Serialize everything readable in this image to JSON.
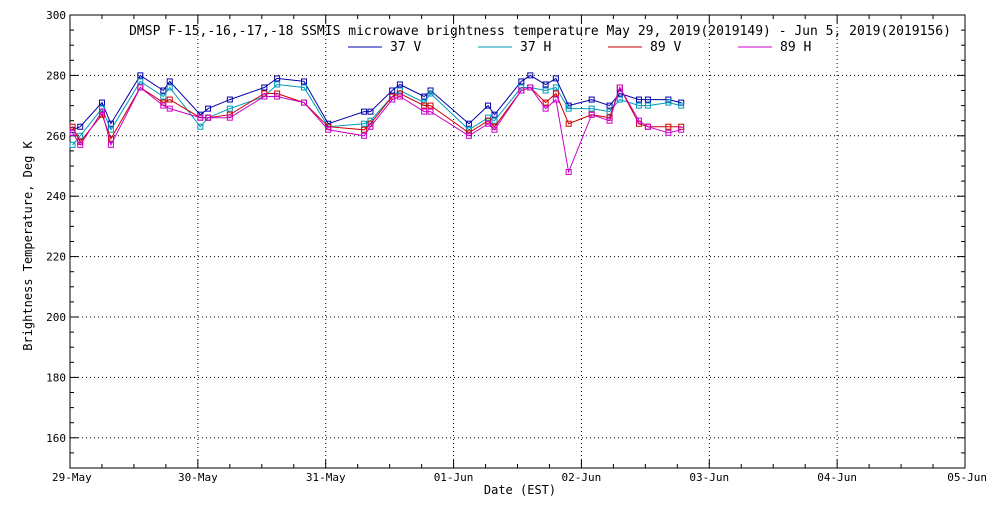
{
  "chart_data": {
    "type": "line",
    "title": "DMSP F-15,-16,-17,-18 SSMIS microwave brightness temperature May 29, 2019(2019149) - Jun  5, 2019(2019156)",
    "xlabel": "Date (EST)",
    "ylabel": "Brightness Temperature, Deg K",
    "xlim": [
      0,
      7
    ],
    "ylim": [
      150,
      300
    ],
    "x_ticks": [
      0,
      1,
      2,
      3,
      4,
      5,
      6,
      7
    ],
    "x_tick_labels": [
      "29-May",
      "30-May",
      "31-May",
      "01-Jun",
      "02-Jun",
      "03-Jun",
      "04-Jun",
      "05-Jun"
    ],
    "y_ticks": [
      160,
      180,
      200,
      220,
      240,
      260,
      280,
      300
    ],
    "y_tick_labels": [
      "160",
      "180",
      "200",
      "220",
      "240",
      "260",
      "280",
      "300"
    ],
    "grid": true,
    "legend_position": "top",
    "series": [
      {
        "name": "37 V",
        "color": "#0000aa",
        "x": [
          0.02,
          0.08,
          0.25,
          0.32,
          0.55,
          0.73,
          0.78,
          1.02,
          1.08,
          1.25,
          1.52,
          1.62,
          1.83,
          2.02,
          2.3,
          2.35,
          2.52,
          2.58,
          2.77,
          2.82,
          3.12,
          3.27,
          3.32,
          3.53,
          3.6,
          3.72,
          3.8,
          3.9,
          4.08,
          4.22,
          4.3,
          4.45,
          4.52,
          4.68,
          4.78
        ],
        "y": [
          262,
          263,
          271,
          264,
          280,
          275,
          278,
          267,
          269,
          272,
          276,
          279,
          278,
          264,
          268,
          268,
          275,
          277,
          273,
          275,
          264,
          270,
          267,
          278,
          280,
          277,
          279,
          270,
          272,
          270,
          274,
          272,
          272,
          272,
          271
        ]
      },
      {
        "name": "37 H",
        "color": "#0099bb",
        "x": [
          0.02,
          0.08,
          0.25,
          0.32,
          0.55,
          0.73,
          0.78,
          1.02,
          1.08,
          1.25,
          1.52,
          1.62,
          1.83,
          2.02,
          2.3,
          2.35,
          2.52,
          2.58,
          2.77,
          2.82,
          3.12,
          3.27,
          3.32,
          3.53,
          3.6,
          3.72,
          3.8,
          3.9,
          4.08,
          4.22,
          4.3,
          4.45,
          4.52,
          4.68,
          4.78
        ],
        "y": [
          257,
          260,
          269,
          262,
          278,
          273,
          276,
          263,
          266,
          269,
          273,
          277,
          276,
          263,
          264,
          265,
          273,
          275,
          271,
          274,
          262,
          266,
          265,
          276,
          276,
          275,
          276,
          269,
          269,
          268,
          272,
          270,
          270,
          271,
          270
        ]
      },
      {
        "name": "89 V",
        "color": "#cc0000",
        "x": [
          0.02,
          0.08,
          0.25,
          0.32,
          0.55,
          0.73,
          0.78,
          1.02,
          1.08,
          1.25,
          1.52,
          1.62,
          1.83,
          2.02,
          2.3,
          2.35,
          2.52,
          2.58,
          2.77,
          2.82,
          3.12,
          3.27,
          3.32,
          3.53,
          3.6,
          3.72,
          3.8,
          3.9,
          4.08,
          4.22,
          4.3,
          4.45,
          4.52,
          4.68,
          4.78
        ],
        "y": [
          263,
          258,
          267,
          259,
          276,
          271,
          272,
          266,
          266,
          267,
          274,
          274,
          271,
          263,
          262,
          264,
          273,
          274,
          270,
          270,
          261,
          265,
          263,
          275,
          276,
          271,
          274,
          264,
          267,
          266,
          276,
          264,
          263,
          263,
          263
        ]
      },
      {
        "name": "89 H",
        "color": "#cc00cc",
        "x": [
          0.02,
          0.08,
          0.25,
          0.32,
          0.55,
          0.73,
          0.78,
          1.02,
          1.08,
          1.25,
          1.52,
          1.62,
          1.83,
          2.02,
          2.3,
          2.35,
          2.52,
          2.58,
          2.77,
          2.82,
          3.12,
          3.27,
          3.32,
          3.53,
          3.6,
          3.72,
          3.8,
          3.9,
          4.08,
          4.22,
          4.3,
          4.45,
          4.52,
          4.68,
          4.78
        ],
        "y": [
          261,
          257,
          268,
          257,
          276,
          270,
          269,
          266,
          266,
          266,
          273,
          273,
          271,
          262,
          260,
          263,
          272,
          273,
          268,
          268,
          260,
          264,
          262,
          275,
          276,
          269,
          272,
          248,
          267,
          265,
          276,
          265,
          263,
          261,
          262
        ]
      }
    ]
  }
}
